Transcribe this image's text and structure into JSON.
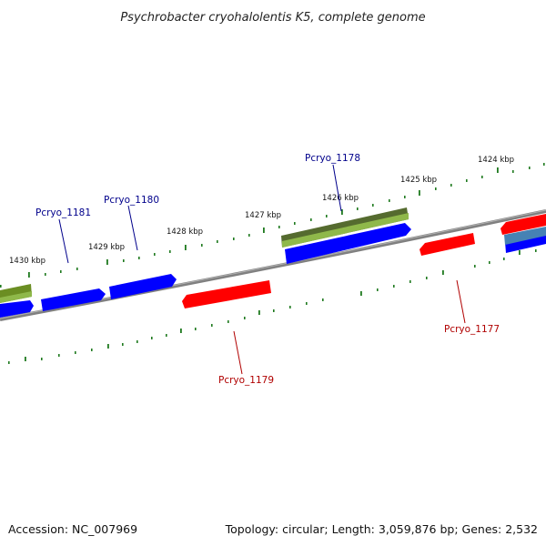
{
  "title": "Psychrobacter cryohalolentis K5, complete genome",
  "footer": {
    "accession": "Accession: NC_007969",
    "summary": "Topology: circular; Length: 3,059,876 bp; Genes: 2,532"
  },
  "colors": {
    "background": "#ffffff",
    "backbone": "#808080",
    "forward_cds": "#0000ff",
    "reverse_cds": "#ff0000",
    "olive_feature": "#6b8e23",
    "steelblue_feature": "#4682b4",
    "tick": "#1f7a1f",
    "forward_label": "#00008b",
    "reverse_label": "#b00000"
  },
  "scale_labels": [
    "1430 kbp",
    "1429 kbp",
    "1428 kbp",
    "1427 kbp",
    "1426 kbp",
    "1425 kbp",
    "1424 kbp"
  ],
  "gene_labels": {
    "forward": [
      "Pcryo_1181",
      "Pcryo_1180",
      "Pcryo_1178"
    ],
    "reverse": [
      "Pcryo_1179",
      "Pcryo_1177"
    ]
  }
}
